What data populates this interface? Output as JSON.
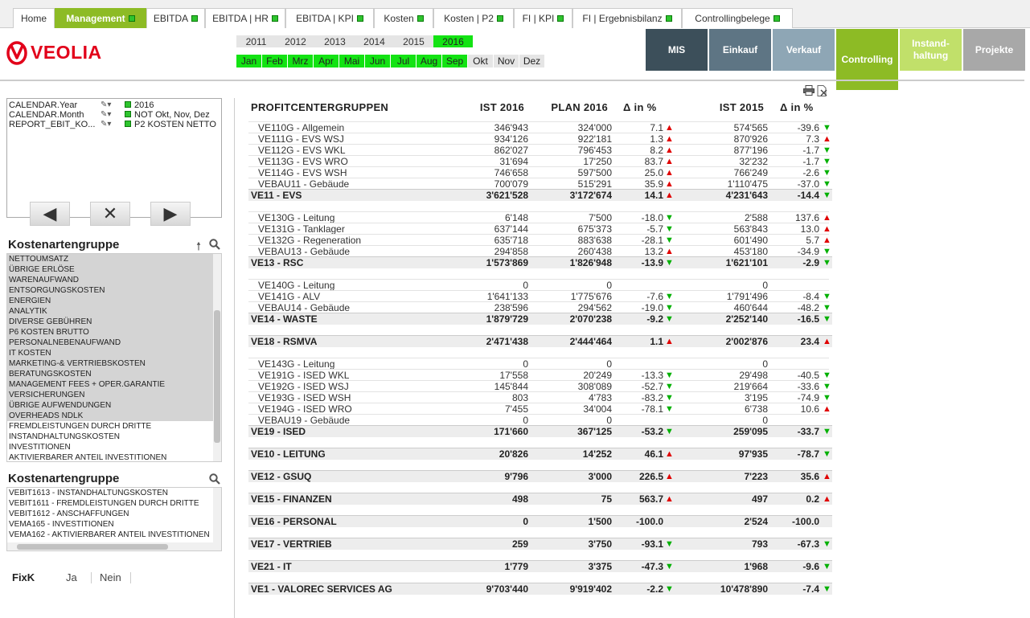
{
  "tabs": [
    {
      "label": "Home",
      "dot": false,
      "active": false
    },
    {
      "label": "Management",
      "dot": true,
      "active": true
    },
    {
      "label": "EBITDA",
      "dot": true,
      "active": false
    },
    {
      "label": "EBITDA | HR",
      "dot": true,
      "active": false
    },
    {
      "label": "EBITDA | KPI",
      "dot": true,
      "active": false
    },
    {
      "label": "Kosten",
      "dot": true,
      "active": false
    },
    {
      "label": "Kosten | P2",
      "dot": true,
      "active": false
    },
    {
      "label": "FI | KPI",
      "dot": true,
      "active": false
    },
    {
      "label": "FI | Ergebnisbilanz",
      "dot": true,
      "active": false
    },
    {
      "label": "Controllingbelege",
      "dot": true,
      "active": false
    }
  ],
  "logo": {
    "text": "VEOLIA"
  },
  "years": [
    {
      "label": "2011",
      "selected": false
    },
    {
      "label": "2012",
      "selected": false
    },
    {
      "label": "2013",
      "selected": false
    },
    {
      "label": "2014",
      "selected": false
    },
    {
      "label": "2015",
      "selected": false
    },
    {
      "label": "2016",
      "selected": true
    }
  ],
  "months": [
    {
      "label": "Jan",
      "selected": true
    },
    {
      "label": "Feb",
      "selected": true
    },
    {
      "label": "Mrz",
      "selected": true
    },
    {
      "label": "Apr",
      "selected": true
    },
    {
      "label": "Mai",
      "selected": true
    },
    {
      "label": "Jun",
      "selected": true
    },
    {
      "label": "Jul",
      "selected": true
    },
    {
      "label": "Aug",
      "selected": true
    },
    {
      "label": "Sep",
      "selected": true
    },
    {
      "label": "Okt",
      "selected": false
    },
    {
      "label": "Nov",
      "selected": false
    },
    {
      "label": "Dez",
      "selected": false
    }
  ],
  "nav_buttons": [
    {
      "label": "MIS",
      "color": "#3c4f5a"
    },
    {
      "label": "Einkauf",
      "color": "#5e7584"
    },
    {
      "label": "Verkauf",
      "color": "#8ea6b5"
    },
    {
      "label": "Controlling",
      "color": "#8dbb25"
    },
    {
      "label": "Instand-\nhaltung",
      "color": "#c1e06a"
    },
    {
      "label": "Projekte",
      "color": "#a8a8a8"
    }
  ],
  "current_selections": [
    {
      "field": "CALENDAR.Year",
      "value": "2016"
    },
    {
      "field": "CALENDAR.Month",
      "value": "NOT Okt, Nov, Dez"
    },
    {
      "field": "REPORT_EBIT_KO...",
      "value": "P2 KOSTEN NETTO"
    }
  ],
  "listbox1": {
    "title": "Kostenartengruppe",
    "items": [
      {
        "label": "NETTOUMSATZ",
        "sel": true
      },
      {
        "label": "ÜBRIGE ERLÖSE",
        "sel": true
      },
      {
        "label": "WARENAUFWAND",
        "sel": true
      },
      {
        "label": "ENTSORGUNGSKOSTEN",
        "sel": true
      },
      {
        "label": "ENERGIEN",
        "sel": true
      },
      {
        "label": "ANALYTIK",
        "sel": true
      },
      {
        "label": "DIVERSE GEBÜHREN",
        "sel": true
      },
      {
        "label": "P6 KOSTEN BRUTTO",
        "sel": true
      },
      {
        "label": "PERSONALNEBENAUFWAND",
        "sel": true
      },
      {
        "label": "IT KOSTEN",
        "sel": true
      },
      {
        "label": "MARKETING-& VERTRIEBSKOSTEN",
        "sel": true
      },
      {
        "label": "BERATUNGSKOSTEN",
        "sel": true
      },
      {
        "label": "MANAGEMENT FEES + OPER.GARANTIE",
        "sel": true
      },
      {
        "label": "VERSICHERUNGEN",
        "sel": true
      },
      {
        "label": "ÜBRIGE AUFWENDUNGEN",
        "sel": true
      },
      {
        "label": "OVERHEADS NDLK",
        "sel": true
      },
      {
        "label": "FREMDLEISTUNGEN DURCH DRITTE",
        "sel": false
      },
      {
        "label": "INSTANDHALTUNGSKOSTEN",
        "sel": false
      },
      {
        "label": "INVESTITIONEN",
        "sel": false
      },
      {
        "label": "AKTIVIERBARER ANTEIL INVESTITIONEN",
        "sel": false
      }
    ]
  },
  "listbox2": {
    "title": "Kostenartengruppe",
    "items": [
      "VEBIT1613 - INSTANDHALTUNGSKOSTEN",
      "VEBIT1611 - FREMDLEISTUNGEN DURCH DRITTE",
      "VEBIT1612 - ANSCHAFFUNGEN",
      "VEMA165 - INVESTITIONEN",
      "VEMA162 - AKTIVIERBARER ANTEIL INVESTITIONEN"
    ]
  },
  "fixk": {
    "label": "FixK",
    "options": [
      "Ja",
      "Nein"
    ]
  },
  "table": {
    "headers": [
      "PROFITCENTERGRUPPEN",
      "IST 2016",
      "PLAN 2016",
      "Δ in %",
      "IST 2015",
      "Δ in %"
    ],
    "rows": [
      {
        "y": 152,
        "label": "VE110G - Allgemein",
        "ist16": "346'943",
        "plan16": "324'000",
        "d1": "7.1",
        "t1": "up",
        "ist15": "574'565",
        "d2": "-39.6",
        "t2": "dn"
      },
      {
        "y": 166,
        "label": "VE111G - EVS WSJ",
        "ist16": "934'126",
        "plan16": "922'181",
        "d1": "1.3",
        "t1": "up",
        "ist15": "870'926",
        "d2": "7.3",
        "t2": "up"
      },
      {
        "y": 180,
        "label": "VE112G - EVS WKL",
        "ist16": "862'027",
        "plan16": "796'453",
        "d1": "8.2",
        "t1": "up",
        "ist15": "877'196",
        "d2": "-1.7",
        "t2": "dn"
      },
      {
        "y": 194,
        "label": "VE113G - EVS WRO",
        "ist16": "31'694",
        "plan16": "17'250",
        "d1": "83.7",
        "t1": "up",
        "ist15": "32'232",
        "d2": "-1.7",
        "t2": "dn"
      },
      {
        "y": 208,
        "label": "VE114G - EVS WSH",
        "ist16": "746'658",
        "plan16": "597'500",
        "d1": "25.0",
        "t1": "up",
        "ist15": "766'249",
        "d2": "-2.6",
        "t2": "dn"
      },
      {
        "y": 222,
        "label": "VEBAU11 - Gebäude",
        "ist16": "700'079",
        "plan16": "515'291",
        "d1": "35.9",
        "t1": "up",
        "ist15": "1'110'475",
        "d2": "-37.0",
        "t2": "dn"
      },
      {
        "y": 236,
        "label": "VE11 - EVS",
        "sum": true,
        "ist16": "3'621'528",
        "plan16": "3'172'674",
        "d1": "14.1",
        "t1": "up",
        "ist15": "4'231'643",
        "d2": "-14.4",
        "t2": "dn"
      },
      {
        "y": 264,
        "label": "VE130G - Leitung",
        "ist16": "6'148",
        "plan16": "7'500",
        "d1": "-18.0",
        "t1": "dn",
        "ist15": "2'588",
        "d2": "137.6",
        "t2": "up"
      },
      {
        "y": 278,
        "label": "VE131G - Tanklager",
        "ist16": "637'144",
        "plan16": "675'373",
        "d1": "-5.7",
        "t1": "dn",
        "ist15": "563'843",
        "d2": "13.0",
        "t2": "up"
      },
      {
        "y": 292,
        "label": "VE132G - Regeneration",
        "ist16": "635'718",
        "plan16": "883'638",
        "d1": "-28.1",
        "t1": "dn",
        "ist15": "601'490",
        "d2": "5.7",
        "t2": "up"
      },
      {
        "y": 306,
        "label": "VEBAU13 - Gebäude",
        "ist16": "294'858",
        "plan16": "260'438",
        "d1": "13.2",
        "t1": "up",
        "ist15": "453'180",
        "d2": "-34.9",
        "t2": "dn"
      },
      {
        "y": 320,
        "label": "VE13 - RSC",
        "sum": true,
        "ist16": "1'573'869",
        "plan16": "1'826'948",
        "d1": "-13.9",
        "t1": "dn",
        "ist15": "1'621'101",
        "d2": "-2.9",
        "t2": "dn"
      },
      {
        "y": 348,
        "label": "VE140G - Leitung",
        "ist16": "0",
        "plan16": "0",
        "d1": "",
        "t1": "",
        "ist15": "0",
        "d2": "",
        "t2": ""
      },
      {
        "y": 362,
        "label": "VE141G - ALV",
        "ist16": "1'641'133",
        "plan16": "1'775'676",
        "d1": "-7.6",
        "t1": "dn",
        "ist15": "1'791'496",
        "d2": "-8.4",
        "t2": "dn"
      },
      {
        "y": 376,
        "label": "VEBAU14 - Gebäude",
        "ist16": "238'596",
        "plan16": "294'562",
        "d1": "-19.0",
        "t1": "dn",
        "ist15": "460'644",
        "d2": "-48.2",
        "t2": "dn"
      },
      {
        "y": 390,
        "label": "VE14 - WASTE",
        "sum": true,
        "ist16": "1'879'729",
        "plan16": "2'070'238",
        "d1": "-9.2",
        "t1": "dn",
        "ist15": "2'252'140",
        "d2": "-16.5",
        "t2": "dn"
      },
      {
        "y": 418,
        "label": "VE18 - RSMVA",
        "sum": true,
        "ist16": "2'471'438",
        "plan16": "2'444'464",
        "d1": "1.1",
        "t1": "up",
        "ist15": "2'002'876",
        "d2": "23.4",
        "t2": "up"
      },
      {
        "y": 446,
        "label": "VE143G - Leitung",
        "ist16": "0",
        "plan16": "0",
        "d1": "",
        "t1": "",
        "ist15": "0",
        "d2": "",
        "t2": ""
      },
      {
        "y": 460,
        "label": "VE191G - ISED WKL",
        "ist16": "17'558",
        "plan16": "20'249",
        "d1": "-13.3",
        "t1": "dn",
        "ist15": "29'498",
        "d2": "-40.5",
        "t2": "dn"
      },
      {
        "y": 474,
        "label": "VE192G - ISED WSJ",
        "ist16": "145'844",
        "plan16": "308'089",
        "d1": "-52.7",
        "t1": "dn",
        "ist15": "219'664",
        "d2": "-33.6",
        "t2": "dn"
      },
      {
        "y": 488,
        "label": "VE193G - ISED WSH",
        "ist16": "803",
        "plan16": "4'783",
        "d1": "-83.2",
        "t1": "dn",
        "ist15": "3'195",
        "d2": "-74.9",
        "t2": "dn"
      },
      {
        "y": 502,
        "label": "VE194G - ISED WRO",
        "ist16": "7'455",
        "plan16": "34'004",
        "d1": "-78.1",
        "t1": "dn",
        "ist15": "6'738",
        "d2": "10.6",
        "t2": "up"
      },
      {
        "y": 516,
        "label": "VEBAU19 - Gebäude",
        "ist16": "0",
        "plan16": "0",
        "d1": "",
        "t1": "",
        "ist15": "0",
        "d2": "",
        "t2": ""
      },
      {
        "y": 530,
        "label": "VE19 - ISED",
        "sum": true,
        "ist16": "171'660",
        "plan16": "367'125",
        "d1": "-53.2",
        "t1": "dn",
        "ist15": "259'095",
        "d2": "-33.7",
        "t2": "dn"
      },
      {
        "y": 558,
        "label": "VE10 - LEITUNG",
        "sum": true,
        "ist16": "20'826",
        "plan16": "14'252",
        "d1": "46.1",
        "t1": "up",
        "ist15": "97'935",
        "d2": "-78.7",
        "t2": "dn"
      },
      {
        "y": 586,
        "label": "VE12 - GSUQ",
        "sum": true,
        "ist16": "9'796",
        "plan16": "3'000",
        "d1": "226.5",
        "t1": "up",
        "ist15": "7'223",
        "d2": "35.6",
        "t2": "up"
      },
      {
        "y": 614,
        "label": "VE15 - FINANZEN",
        "sum": true,
        "ist16": "498",
        "plan16": "75",
        "d1": "563.7",
        "t1": "up",
        "ist15": "497",
        "d2": "0.2",
        "t2": "up"
      },
      {
        "y": 642,
        "label": "VE16 - PERSONAL",
        "sum": true,
        "ist16": "0",
        "plan16": "1'500",
        "d1": "-100.0",
        "t1": "",
        "ist15": "2'524",
        "d2": "-100.0",
        "t2": ""
      },
      {
        "y": 670,
        "label": "VE17 - VERTRIEB",
        "sum": true,
        "ist16": "259",
        "plan16": "3'750",
        "d1": "-93.1",
        "t1": "dn",
        "ist15": "793",
        "d2": "-67.3",
        "t2": "dn"
      },
      {
        "y": 698,
        "label": "VE21 - IT",
        "sum": true,
        "ist16": "1'779",
        "plan16": "3'375",
        "d1": "-47.3",
        "t1": "dn",
        "ist15": "1'968",
        "d2": "-9.6",
        "t2": "dn"
      },
      {
        "y": 726,
        "label": "VE1 - VALOREC SERVICES AG",
        "sum": true,
        "ist16": "9'703'440",
        "plan16": "9'919'402",
        "d1": "-2.2",
        "t1": "dn",
        "ist15": "10'478'890",
        "d2": "-7.4",
        "t2": "dn"
      }
    ]
  }
}
